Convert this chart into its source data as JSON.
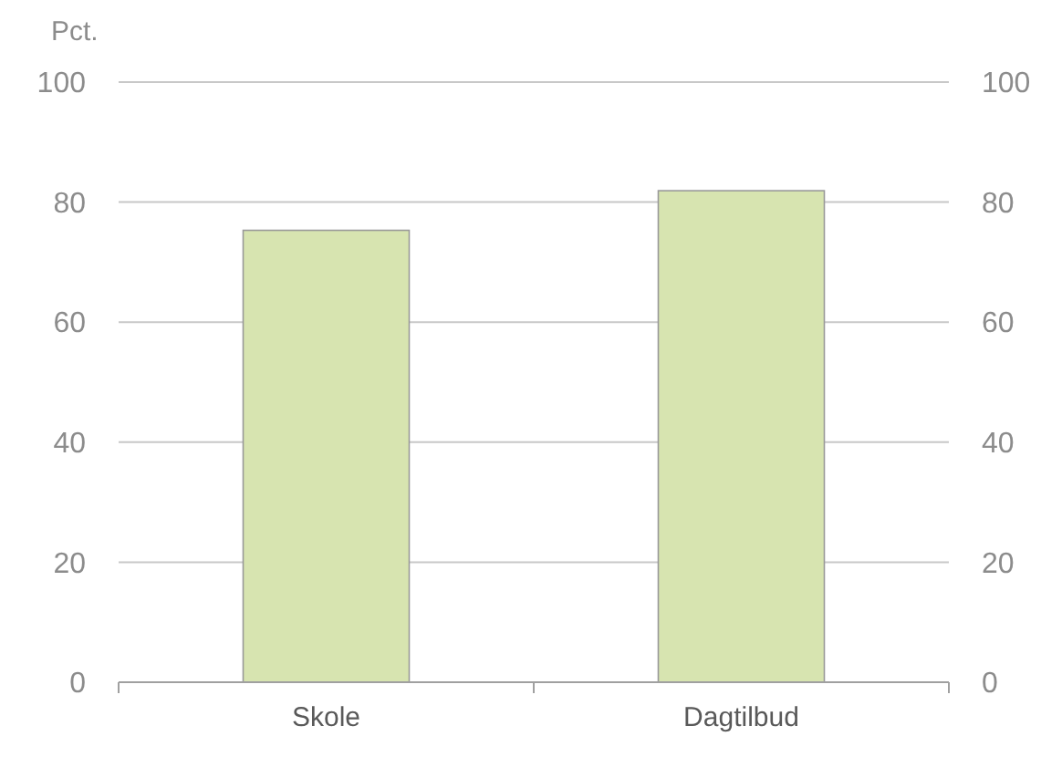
{
  "chart_data": {
    "type": "bar",
    "ylabel": "Pct.",
    "categories": [
      "Skole",
      "Dagtilbud"
    ],
    "values": [
      75.3,
      81.9
    ],
    "color": "#d7e4b0",
    "ylim": [
      0,
      100
    ],
    "yticks": [
      0,
      20,
      40,
      60,
      80,
      100
    ],
    "y2lim": [
      0,
      100
    ],
    "y2ticks": [
      0,
      20,
      40,
      60,
      80,
      100
    ],
    "grid": "y"
  }
}
